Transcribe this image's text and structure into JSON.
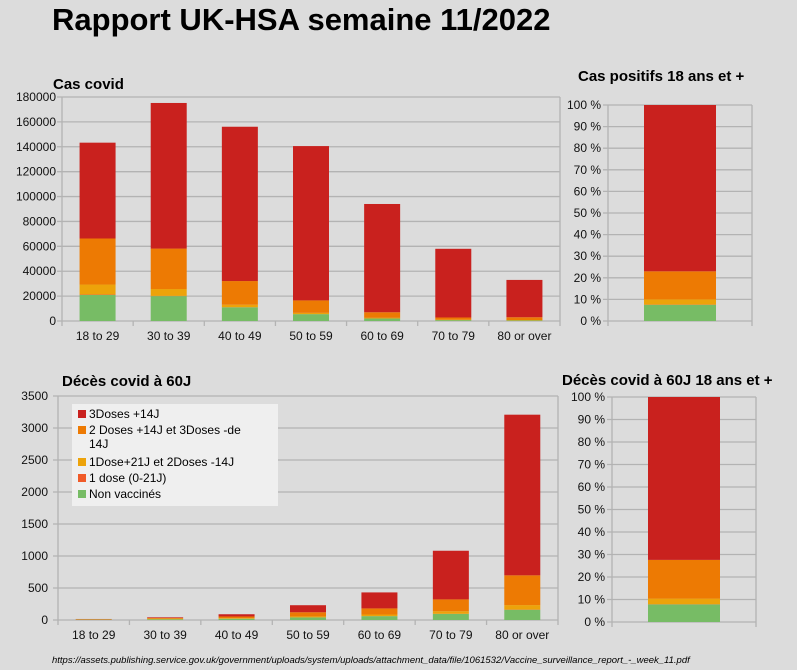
{
  "title": "Rapport UK-HSA semaine 11/2022",
  "source": "https://assets.publishing.service.gov.uk/government/uploads/system/uploads/attachment_data/file/1061532/Vaccine_surveillance_report_-_week_11.pdf",
  "colors": {
    "3Doses +14J": "#c9211e",
    "2 Doses +14J et 3Doses -de 14J": "#ed7a03",
    "1Dose+21J et 2Doses -14J": "#eda30a",
    "1 dose (0-21J)": "#f05a28",
    "Non vaccinés": "#77bc65"
  },
  "legend": [
    {
      "label": "3Doses +14J",
      "color": "#c9211e"
    },
    {
      "label": "2 Doses +14J et 3Doses -de 14J",
      "label_line1": "2 Doses +14J et 3Doses -de",
      "label_line2": "14J",
      "color": "#ed7a03"
    },
    {
      "label": "1Dose+21J et 2Doses -14J",
      "color": "#eda30a"
    },
    {
      "label": "1 dose (0-21J)",
      "color": "#f05a28"
    },
    {
      "label": "Non vaccinés",
      "color": "#77bc65"
    }
  ],
  "chart_data": [
    {
      "id": "cases",
      "type": "bar",
      "stacked": true,
      "title": "Cas covid",
      "xlabel": "",
      "ylabel": "",
      "ylim": [
        0,
        180000
      ],
      "yticks": [
        0,
        20000,
        40000,
        60000,
        80000,
        100000,
        120000,
        140000,
        160000,
        180000
      ],
      "grid": true,
      "categories": [
        "18 to 29",
        "30 to 39",
        "40 to 49",
        "50 to 59",
        "60 to 69",
        "70 to 79",
        "80 or over"
      ],
      "series": [
        {
          "name": "Non vaccinés",
          "values": [
            21000,
            20000,
            11000,
            5500,
            2000,
            700,
            400
          ]
        },
        {
          "name": "1 dose (0-21J)",
          "values": [
            300,
            200,
            100,
            50,
            30,
            20,
            10
          ]
        },
        {
          "name": "1Dose+21J et 2Doses -14J",
          "values": [
            8000,
            5500,
            2000,
            1000,
            500,
            300,
            300
          ]
        },
        {
          "name": "2 Doses +14J et 3Doses -de 14J",
          "values": [
            37000,
            32500,
            19000,
            10000,
            4500,
            1800,
            2300
          ]
        },
        {
          "name": "3Doses +14J",
          "values": [
            77000,
            117000,
            124000,
            124000,
            87000,
            55200,
            30000
          ]
        }
      ]
    },
    {
      "id": "cases-pct",
      "type": "bar",
      "stacked": true,
      "percent": true,
      "title": "Cas positifs 18 ans et +",
      "ylim": [
        0,
        100
      ],
      "yticks": [
        "0 %",
        "10 %",
        "20 %",
        "30 %",
        "40 %",
        "50 %",
        "60 %",
        "70 %",
        "80 %",
        "90 %",
        "100 %"
      ],
      "grid": true,
      "categories": [
        ""
      ],
      "series": [
        {
          "name": "Non vaccinés",
          "values": [
            7.5
          ]
        },
        {
          "name": "1 dose (0-21J)",
          "values": [
            0.1
          ]
        },
        {
          "name": "1Dose+21J et 2Doses -14J",
          "values": [
            2.4
          ]
        },
        {
          "name": "2 Doses +14J et 3Doses -de 14J",
          "values": [
            13.0
          ]
        },
        {
          "name": "3Doses +14J",
          "values": [
            77.0
          ]
        }
      ]
    },
    {
      "id": "deaths",
      "type": "bar",
      "stacked": true,
      "title": "Décès covid à 60J",
      "ylim": [
        0,
        3500
      ],
      "yticks": [
        0,
        500,
        1000,
        1500,
        2000,
        2500,
        3000,
        3500
      ],
      "grid": true,
      "legend_position": "top-left",
      "categories": [
        "18 to 29",
        "30 to 39",
        "40 to 49",
        "50 to 59",
        "60 to 69",
        "70 to 79",
        "80 or over"
      ],
      "series": [
        {
          "name": "Non vaccinés",
          "values": [
            5,
            12,
            20,
            40,
            60,
            95,
            160
          ]
        },
        {
          "name": "1 dose (0-21J)",
          "values": [
            0,
            0,
            0,
            1,
            1,
            2,
            3
          ]
        },
        {
          "name": "1Dose+21J et 2Doses -14J",
          "values": [
            3,
            8,
            10,
            15,
            25,
            40,
            70
          ]
        },
        {
          "name": "2 Doses +14J et 3Doses -de 14J",
          "values": [
            5,
            12,
            25,
            65,
            95,
            185,
            465
          ]
        },
        {
          "name": "3Doses +14J",
          "values": [
            3,
            10,
            35,
            110,
            250,
            760,
            2510
          ]
        }
      ]
    },
    {
      "id": "deaths-pct",
      "type": "bar",
      "stacked": true,
      "percent": true,
      "title": "Décès covid à 60J 18 ans et +",
      "ylim": [
        0,
        100
      ],
      "yticks": [
        "0 %",
        "10 %",
        "20 %",
        "30 %",
        "40 %",
        "50 %",
        "60 %",
        "70 %",
        "80 %",
        "90 %",
        "100 %"
      ],
      "grid": true,
      "categories": [
        ""
      ],
      "series": [
        {
          "name": "Non vaccinés",
          "values": [
            7.8
          ]
        },
        {
          "name": "1 dose (0-21J)",
          "values": [
            0.1
          ]
        },
        {
          "name": "1Dose+21J et 2Doses -14J",
          "values": [
            2.5
          ]
        },
        {
          "name": "2 Doses +14J et 3Doses -de 14J",
          "values": [
            17.2
          ]
        },
        {
          "name": "3Doses +14J",
          "values": [
            72.4
          ]
        }
      ]
    }
  ]
}
